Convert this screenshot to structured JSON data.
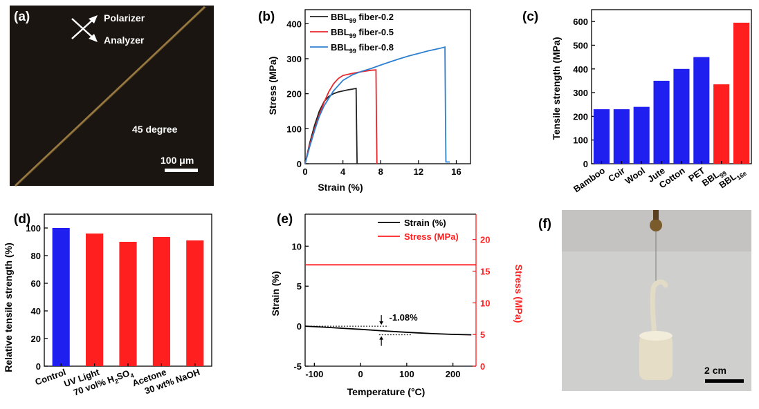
{
  "panels": {
    "a": {
      "label": "(a)",
      "polarizer": "Polarizer",
      "analyzer": "Analyzer",
      "angle": "45 degree",
      "scalebar": "100 μm",
      "colors": {
        "background": "#1a1511",
        "fiber": "#9a7a40"
      }
    },
    "f": {
      "label": "(f)",
      "scalebar": "2 cm",
      "colors": {
        "background": "#cfcfcd",
        "sample": "#e6ddc6"
      }
    }
  },
  "chart_data": [
    {
      "id": "b",
      "label": "(b)",
      "type": "line",
      "xlabel": "Strain (%)",
      "ylabel": "Stress (MPa)",
      "xlim": [
        0,
        17.5
      ],
      "ylim": [
        0,
        440
      ],
      "xticks": [
        0,
        4,
        8,
        12,
        16
      ],
      "yticks": [
        0,
        100,
        200,
        300,
        400
      ],
      "legend_position": "top-left",
      "series": [
        {
          "name_main": "BBL",
          "name_sub": "99",
          "name_rest": " fiber-0.2",
          "color": "#222222",
          "x": [
            0,
            0.5,
            1.0,
            1.5,
            2.0,
            2.5,
            3.0,
            3.5,
            4.0,
            4.5,
            5.0,
            5.4,
            5.45,
            5.5
          ],
          "y": [
            0,
            60,
            110,
            150,
            177,
            192,
            200,
            205,
            208,
            211,
            213,
            215,
            100,
            0
          ]
        },
        {
          "name_main": "BBL",
          "name_sub": "99",
          "name_rest": " fiber-0.5",
          "color": "#e8262b",
          "x": [
            0,
            0.5,
            1.0,
            1.5,
            2.0,
            2.5,
            3.0,
            3.5,
            4.0,
            5.0,
            6.0,
            7.0,
            7.5,
            7.55,
            7.6
          ],
          "y": [
            0,
            55,
            100,
            140,
            175,
            205,
            228,
            243,
            252,
            258,
            263,
            267,
            268,
            120,
            0
          ]
        },
        {
          "name_main": "BBL",
          "name_sub": "99",
          "name_rest": " fiber-0.8",
          "color": "#2f7fd0",
          "x": [
            0,
            0.5,
            1.0,
            1.5,
            2.0,
            3.0,
            4.0,
            5.0,
            6.0,
            7.0,
            8.0,
            9.0,
            10.0,
            11.0,
            12.0,
            13.0,
            14.0,
            14.8,
            14.85,
            14.9,
            15.3
          ],
          "y": [
            0,
            50,
            95,
            135,
            165,
            208,
            238,
            254,
            264,
            272,
            282,
            291,
            300,
            308,
            315,
            322,
            328,
            333,
            150,
            5,
            5
          ]
        }
      ]
    },
    {
      "id": "c",
      "label": "(c)",
      "type": "bar",
      "ylabel": "Tensile strength (MPa)",
      "ylim": [
        0,
        650
      ],
      "yticks": [
        0,
        100,
        200,
        300,
        400,
        500,
        600
      ],
      "categories": [
        "Bamboo",
        "Coir",
        "Wool",
        "Jute",
        "Cotton",
        "PET",
        "BBL",
        "BBL"
      ],
      "category_subs": [
        "",
        "",
        "",
        "",
        "",
        "",
        "99",
        "16e"
      ],
      "values": [
        230,
        230,
        240,
        350,
        400,
        450,
        335,
        595
      ],
      "colors": [
        "#1f1ff0",
        "#1f1ff0",
        "#1f1ff0",
        "#1f1ff0",
        "#1f1ff0",
        "#1f1ff0",
        "#ff1f1f",
        "#ff1f1f"
      ]
    },
    {
      "id": "d",
      "label": "(d)",
      "type": "bar",
      "ylabel": "Relative tensile strength (%)",
      "ylim": [
        0,
        110
      ],
      "yticks": [
        0,
        20,
        40,
        60,
        80,
        100
      ],
      "categories": [
        "Control",
        "UV Light",
        "70 vol% H2SO4",
        "Acetone",
        "30 wt% NaOH"
      ],
      "category_parts": [
        [
          "Control"
        ],
        [
          "UV Light"
        ],
        [
          "70 vol% H",
          "2",
          "SO",
          "4"
        ],
        [
          "Acetone"
        ],
        [
          "30 wt% NaOH"
        ]
      ],
      "values": [
        100,
        96,
        90,
        93.5,
        91
      ],
      "colors": [
        "#1f1ff0",
        "#ff1f1f",
        "#ff1f1f",
        "#ff1f1f",
        "#ff1f1f"
      ]
    },
    {
      "id": "e",
      "label": "(e)",
      "type": "line",
      "xlabel": "Temperature (°C)",
      "ylabel": "Strain (%)",
      "y2label": "Stress (MPa)",
      "xlim": [
        -120,
        250
      ],
      "ylim": [
        -5,
        14
      ],
      "y2lim": [
        0,
        24
      ],
      "xticks": [
        -100,
        0,
        100,
        200
      ],
      "yticks": [
        -5,
        0,
        5,
        10
      ],
      "y2ticks": [
        0,
        5,
        10,
        15,
        20
      ],
      "legend_position": "top-right",
      "annotation": "-1.08%",
      "series": [
        {
          "name": "Strain (%)",
          "color": "#000000",
          "axis": "left",
          "x": [
            -120,
            -80,
            -40,
            0,
            40,
            80,
            120,
            160,
            200,
            240
          ],
          "y": [
            0,
            -0.12,
            -0.26,
            -0.4,
            -0.55,
            -0.7,
            -0.83,
            -0.94,
            -1.03,
            -1.08
          ]
        },
        {
          "name": "Stress (MPa)",
          "color": "#ff1f1f",
          "axis": "right",
          "x": [
            -120,
            250
          ],
          "y": [
            16,
            16
          ]
        }
      ]
    }
  ]
}
